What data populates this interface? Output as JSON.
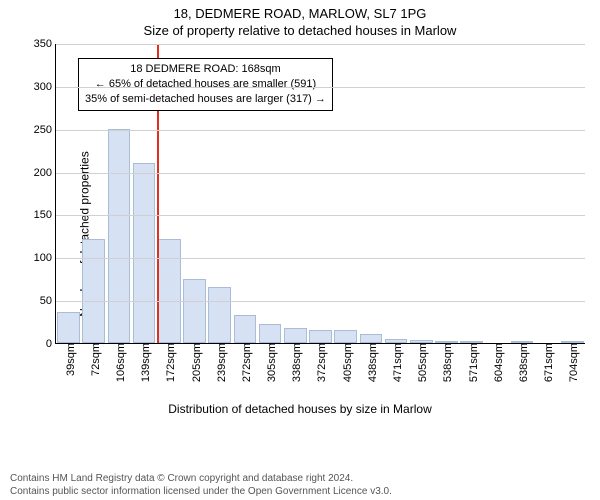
{
  "title_main": "18, DEDMERE ROAD, MARLOW, SL7 1PG",
  "title_sub": "Size of property relative to detached houses in Marlow",
  "ylabel": "Number of detached properties",
  "xlabel": "Distribution of detached houses by size in Marlow",
  "footer_line1": "Contains HM Land Registry data © Crown copyright and database right 2024.",
  "footer_line2": "Contains public sector information licensed under the Open Government Licence v3.0.",
  "chart": {
    "type": "histogram",
    "ymax": 350,
    "ytick_step": 50,
    "yticks": [
      0,
      50,
      100,
      150,
      200,
      250,
      300,
      350
    ],
    "bar_fill": "#d6e2f3",
    "bar_border": "#a9bcd8",
    "grid_color": "#d0d0d0",
    "background_color": "#ffffff",
    "refline_color": "#e03020",
    "refline_x_index": 4,
    "categories": [
      "39sqm",
      "72sqm",
      "106sqm",
      "139sqm",
      "172sqm",
      "205sqm",
      "239sqm",
      "272sqm",
      "305sqm",
      "338sqm",
      "372sqm",
      "405sqm",
      "438sqm",
      "471sqm",
      "505sqm",
      "538sqm",
      "571sqm",
      "604sqm",
      "638sqm",
      "671sqm",
      "704sqm"
    ],
    "values": [
      36,
      122,
      251,
      211,
      122,
      75,
      66,
      33,
      22,
      18,
      15,
      15,
      10,
      5,
      3,
      2,
      2,
      0,
      2,
      0,
      1
    ]
  },
  "annotation": {
    "line1_label": "18 DEDMERE ROAD: ",
    "line1_value": "168sqm",
    "line2": "← 65% of detached houses are smaller (591)",
    "line3": "35% of semi-detached houses are larger (317) →"
  },
  "fonts": {
    "title_size_pt": 13,
    "axis_label_size_pt": 12,
    "tick_size_pt": 11,
    "annot_size_pt": 11,
    "footer_size_pt": 10
  }
}
